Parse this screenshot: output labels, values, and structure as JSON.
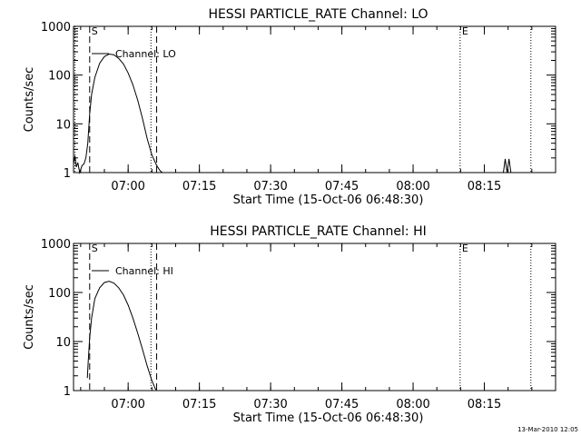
{
  "footer_timestamp": "13-Mar-2010 12:05",
  "chart_data": [
    {
      "type": "line",
      "title": "HESSI PARTICLE_RATE Channel: LO",
      "xlabel": "Start Time (15-Oct-06 06:48:30)",
      "ylabel": "Counts/sec",
      "yscale": "log",
      "ylim": [
        1,
        1000
      ],
      "xlim_minutes_from_start": [
        0,
        101.5
      ],
      "x_tick_labels": [
        "07:00",
        "07:15",
        "07:30",
        "07:45",
        "08:00",
        "08:15"
      ],
      "x_tick_minutes": [
        11.5,
        26.5,
        41.5,
        56.5,
        71.5,
        86.5
      ],
      "y_tick_labels": [
        "1",
        "10",
        "100",
        "1000"
      ],
      "y_tick_values": [
        1,
        10,
        100,
        1000
      ],
      "legend": "Channel: LO",
      "legend_placement": "top-left",
      "markers": [
        {
          "label": "S",
          "x": 3.4,
          "style": "dashed"
        },
        {
          "label": "",
          "x": 17.5,
          "style": "dashed"
        },
        {
          "label": "",
          "x": 16.3,
          "style": "dotted"
        },
        {
          "label": "E",
          "x": 81.4,
          "style": "dotted"
        },
        {
          "label": "",
          "x": 96.3,
          "style": "dotted"
        },
        {
          "label": "",
          "x": 0.3,
          "style": "dotted"
        }
      ],
      "series": [
        {
          "x": [
            0,
            0.3,
            0.6,
            0.9,
            1.3,
            1.8,
            2.2,
            2.6,
            3.0,
            3.4,
            3.8,
            4.5,
            5.5,
            6.5,
            7.5,
            8.5,
            9.5,
            10.5,
            11.5,
            12.5,
            13.5,
            14.5,
            15.5,
            16.5,
            17.5,
            18.2,
            18.7
          ],
          "y": [
            1.5,
            2.2,
            1.3,
            1.6,
            1.0,
            1.4,
            1.5,
            2.0,
            4.0,
            16,
            40,
            90,
            175,
            240,
            270,
            260,
            220,
            170,
            110,
            63,
            31,
            13,
            5.0,
            2.3,
            1.4,
            1.1,
            1.0
          ]
        },
        {
          "x": [
            90.5,
            90.9,
            91.3,
            91.7,
            92.1
          ],
          "y": [
            1.0,
            1.9,
            1.0,
            1.9,
            1.0
          ]
        }
      ]
    },
    {
      "type": "line",
      "title": "HESSI PARTICLE_RATE Channel: HI",
      "xlabel": "Start Time (15-Oct-06 06:48:30)",
      "ylabel": "Counts/sec",
      "yscale": "log",
      "ylim": [
        1,
        1000
      ],
      "xlim_minutes_from_start": [
        0,
        101.5
      ],
      "x_tick_labels": [
        "07:00",
        "07:15",
        "07:30",
        "07:45",
        "08:00",
        "08:15"
      ],
      "x_tick_minutes": [
        11.5,
        26.5,
        41.5,
        56.5,
        71.5,
        86.5
      ],
      "y_tick_labels": [
        "1",
        "10",
        "100",
        "1000"
      ],
      "y_tick_values": [
        1,
        10,
        100,
        1000
      ],
      "legend": "Channel: HI",
      "legend_placement": "top-left",
      "markers": [
        {
          "label": "S",
          "x": 3.4,
          "style": "dashed"
        },
        {
          "label": "",
          "x": 17.5,
          "style": "dashed"
        },
        {
          "label": "",
          "x": 16.3,
          "style": "dotted"
        },
        {
          "label": "E",
          "x": 81.4,
          "style": "dotted"
        },
        {
          "label": "",
          "x": 96.3,
          "style": "dotted"
        }
      ],
      "series": [
        {
          "x": [
            2.9,
            3.1,
            3.4,
            3.8,
            4.5,
            5.5,
            6.5,
            7.5,
            8.5,
            9.5,
            10.5,
            11.5,
            12.5,
            13.5,
            14.5,
            15.5,
            16.5,
            17.2,
            17.5
          ],
          "y": [
            1.8,
            4.0,
            12,
            30,
            75,
            125,
            160,
            170,
            155,
            125,
            90,
            55,
            30,
            15,
            7.0,
            3.2,
            1.6,
            1.1,
            1.0
          ]
        }
      ]
    }
  ]
}
